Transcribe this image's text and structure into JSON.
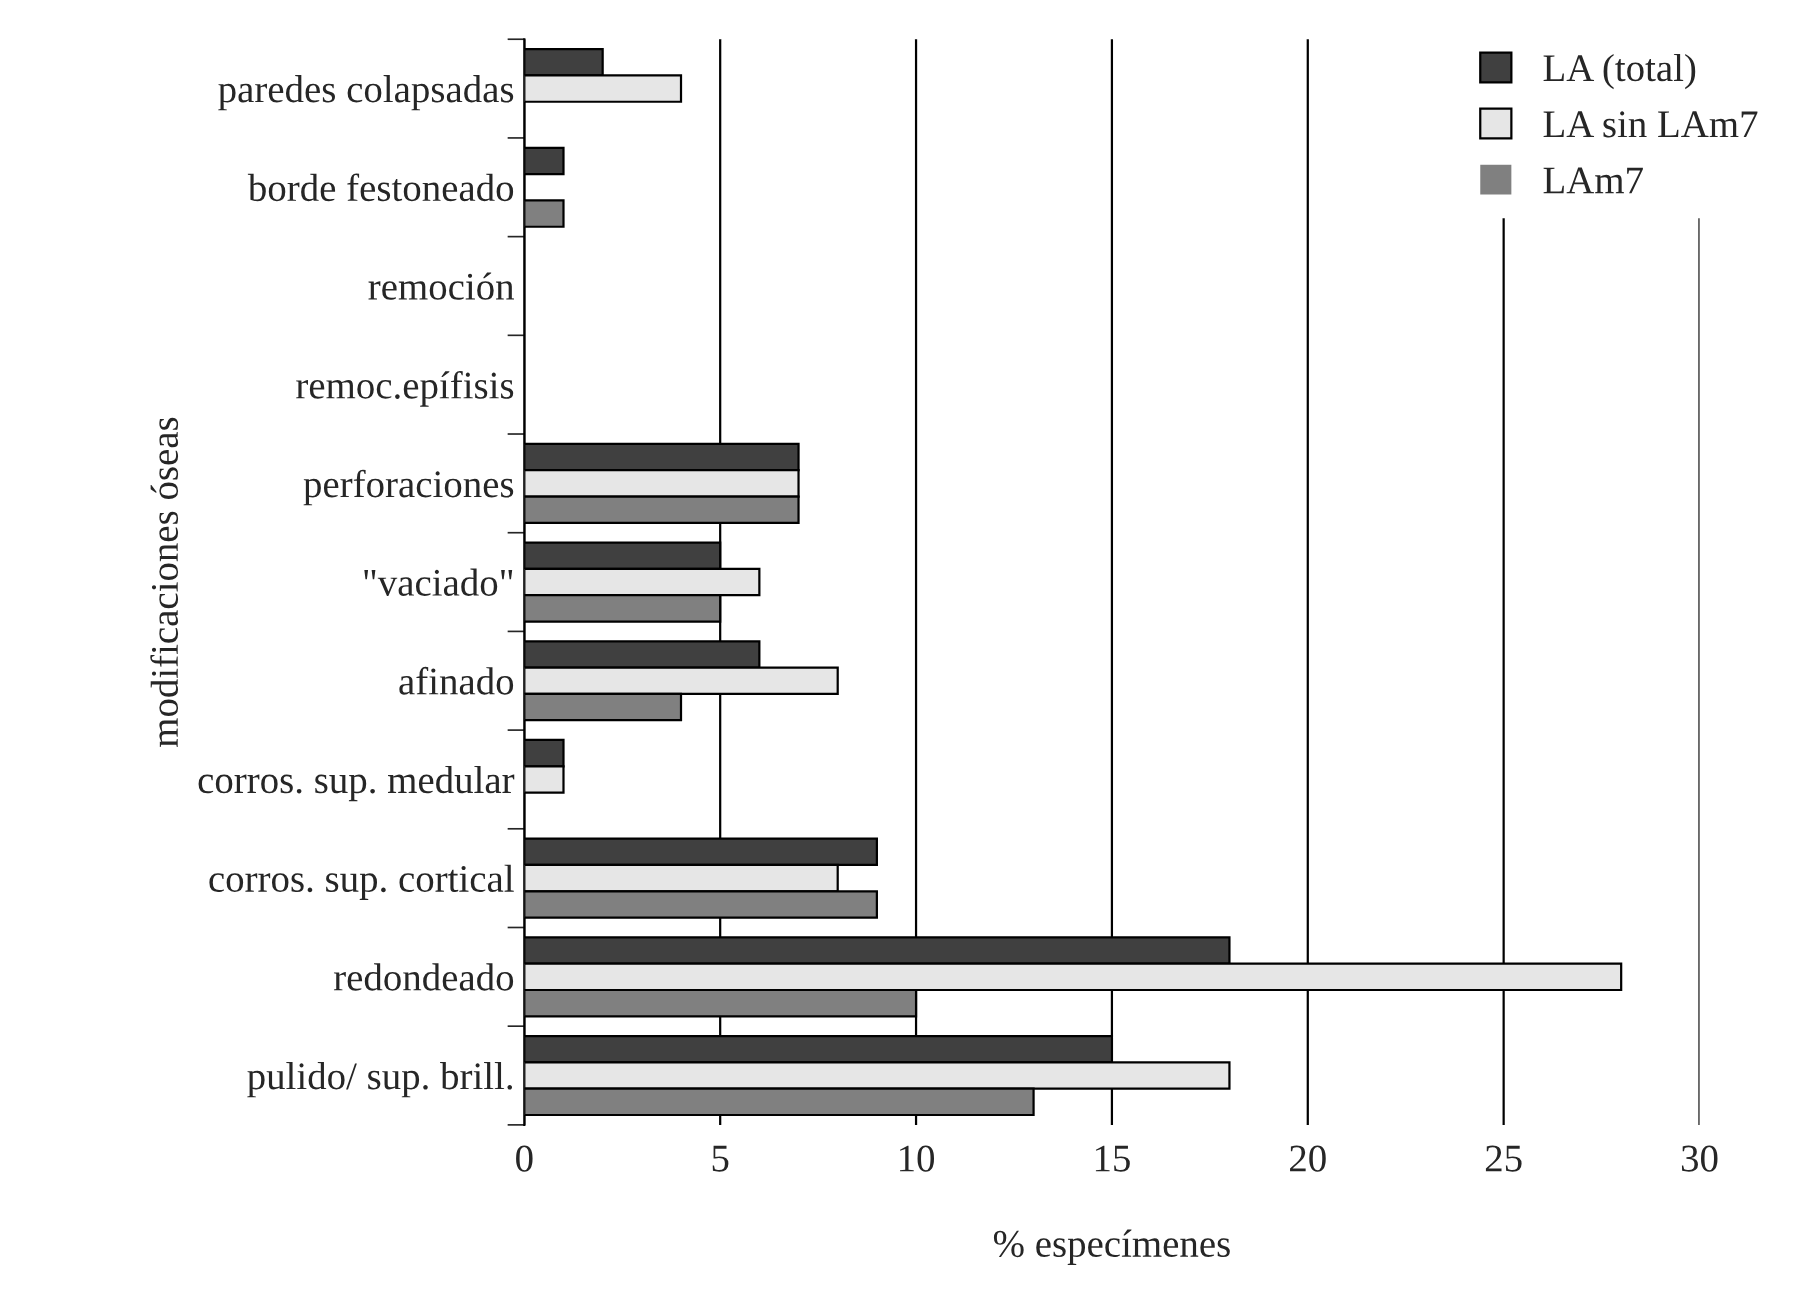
{
  "chart_data": {
    "type": "bar",
    "orientation": "horizontal",
    "xlabel": "% especímenes",
    "ylabel": "modificaciones óseas",
    "categories": [
      "paredes colapsadas",
      "borde festoneado",
      "remoción",
      "remoc.epífisis",
      "perforaciones",
      "\"vaciado\"",
      "afinado",
      "corros. sup. medular",
      "corros. sup. cortical",
      "redondeado",
      "pulido/ sup. brill."
    ],
    "series": [
      {
        "name": "LA (total)",
        "color": "#404040",
        "values": [
          2,
          1,
          0,
          0,
          7,
          5,
          6,
          1,
          9,
          18,
          15
        ]
      },
      {
        "name": "LA sin LAm7",
        "color": "#e6e6e6",
        "values": [
          4,
          0,
          0,
          0,
          7,
          6,
          8,
          1,
          8,
          28,
          18
        ]
      },
      {
        "name": "LAm7",
        "color": "#808080",
        "values": [
          0,
          1,
          0,
          0,
          7,
          5,
          4,
          0,
          9,
          10,
          13
        ]
      }
    ],
    "xlim": [
      0,
      30
    ],
    "xticks": [
      0,
      5,
      10,
      15,
      20,
      25,
      30
    ],
    "grid": "x",
    "legend": "top right"
  }
}
